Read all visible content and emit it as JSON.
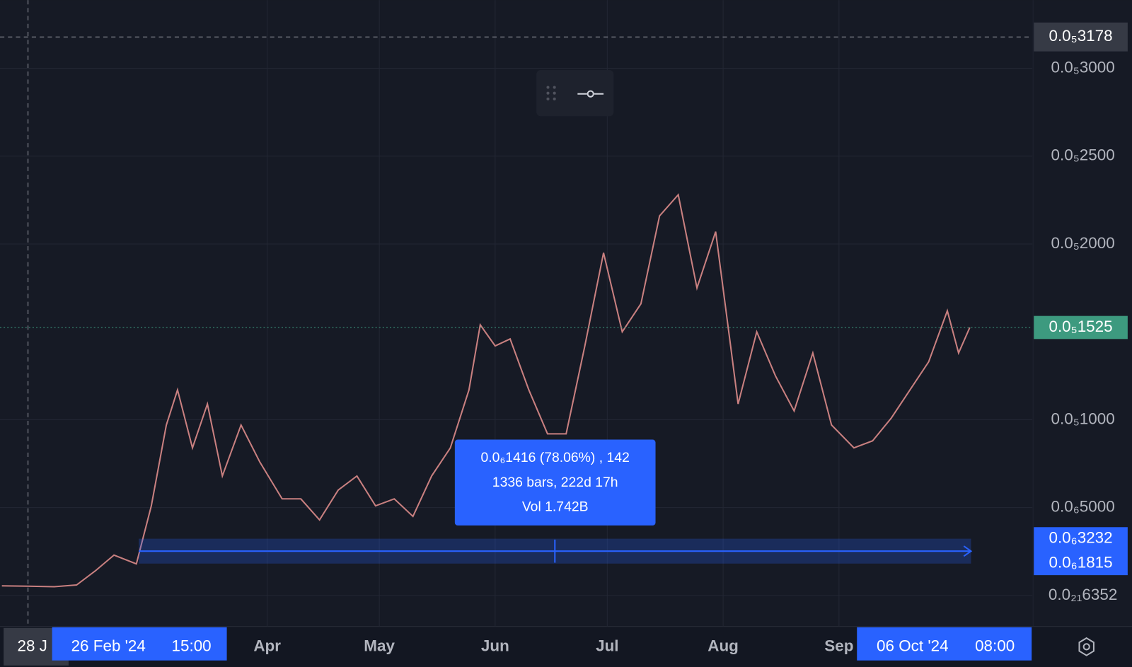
{
  "chart_data": {
    "type": "line",
    "x": [
      "2024-01-21",
      "2024-01-28",
      "2024-02-04",
      "2024-02-10",
      "2024-02-15",
      "2024-02-20",
      "2024-02-26",
      "2024-03-01",
      "2024-03-05",
      "2024-03-08",
      "2024-03-12",
      "2024-03-16",
      "2024-03-20",
      "2024-03-25",
      "2024-03-30",
      "2024-04-05",
      "2024-04-10",
      "2024-04-15",
      "2024-04-20",
      "2024-04-25",
      "2024-04-30",
      "2024-05-05",
      "2024-05-10",
      "2024-05-15",
      "2024-05-20",
      "2024-05-25",
      "2024-05-28",
      "2024-06-01",
      "2024-06-05",
      "2024-06-10",
      "2024-06-15",
      "2024-06-20",
      "2024-06-25",
      "2024-06-30",
      "2024-07-05",
      "2024-07-10",
      "2024-07-15",
      "2024-07-20",
      "2024-07-25",
      "2024-07-30",
      "2024-08-03",
      "2024-08-05",
      "2024-08-10",
      "2024-08-15",
      "2024-08-20",
      "2024-08-25",
      "2024-08-30",
      "2024-09-05",
      "2024-09-10",
      "2024-09-15",
      "2024-09-20",
      "2024-09-25",
      "2024-09-30",
      "2024-10-03",
      "2024-10-06"
    ],
    "series": [
      {
        "color": "#c98080",
        "values": [
          5.5e-08,
          5.3e-08,
          5e-08,
          6e-08,
          1.4e-07,
          2.3e-07,
          1.8e-07,
          5.1e-07,
          9.7e-07,
          1.17e-06,
          8.4e-07,
          1.09e-06,
          6.8e-07,
          9.7e-07,
          7.6e-07,
          5.5e-07,
          5.5e-07,
          4.3e-07,
          6e-07,
          6.8e-07,
          5.1e-07,
          5.5e-07,
          4.5e-07,
          6.8e-07,
          8.4e-07,
          1.17e-06,
          1.54e-06,
          1.42e-06,
          1.46e-06,
          1.17e-06,
          9.2e-07,
          9.2e-07,
          1.42e-06,
          1.95e-06,
          1.5e-06,
          1.66e-06,
          2.16e-06,
          2.28e-06,
          1.75e-06,
          2.07e-06,
          1.42e-06,
          1.09e-06,
          1.5e-06,
          1.25e-06,
          1.05e-06,
          1.38e-06,
          9.7e-07,
          8.4e-07,
          8.8e-07,
          1.01e-06,
          1.17e-06,
          1.33e-06,
          1.62e-06,
          1.38e-06,
          1.525e-06
        ]
      }
    ],
    "xlim": [
      "2024-01-20T12:00:00Z",
      "2024-10-22T18:00:00Z"
    ],
    "xticks": [
      {
        "value": "2024-04-01",
        "label": "Apr"
      },
      {
        "value": "2024-05-01",
        "label": "May"
      },
      {
        "value": "2024-06-01",
        "label": "Jun"
      },
      {
        "value": "2024-07-01",
        "label": "Jul"
      },
      {
        "value": "2024-08-01",
        "label": "Aug"
      },
      {
        "value": "2024-09-01",
        "label": "Sep"
      }
    ],
    "ylim": [
      -1.766e-07,
      3.388e-06
    ],
    "yticks": [
      {
        "value": 6.352e-22,
        "label": "0.0₂₁6352"
      },
      {
        "value": 5e-07,
        "label": "0.0₆5000"
      },
      {
        "value": 1e-06,
        "label": "0.0₅1000"
      },
      {
        "value": 2e-06,
        "label": "0.0₅2000"
      },
      {
        "value": 2.5e-06,
        "label": "0.0₅2500"
      },
      {
        "value": 3e-06,
        "label": "0.0₅3000"
      }
    ],
    "grid": true,
    "crosshair": {
      "x": "2024-01-28",
      "x_label": "28 J",
      "y": {
        "value": 3.178e-06,
        "label": "0.0₅3178"
      }
    },
    "last_price": {
      "value": 1.525e-06,
      "label": "0.0₅1525",
      "color": "#3d9a7f"
    },
    "measure": {
      "start": "2024-02-26T15:00:00Z",
      "end": "2024-10-06T08:00:00Z",
      "start_date": "26 Feb '24",
      "start_time": "15:00",
      "end_date": "06 Oct '24",
      "end_time": "08:00",
      "low": {
        "value": 1.815e-07,
        "label": "0.0₆1815"
      },
      "high": {
        "value": 3.232e-07,
        "label": "0.0₆3232"
      },
      "lines": [
        "0.0₆1416 (78.06%) , 142",
        "1336 bars, 222d 17h",
        "Vol 1.742B"
      ]
    }
  }
}
